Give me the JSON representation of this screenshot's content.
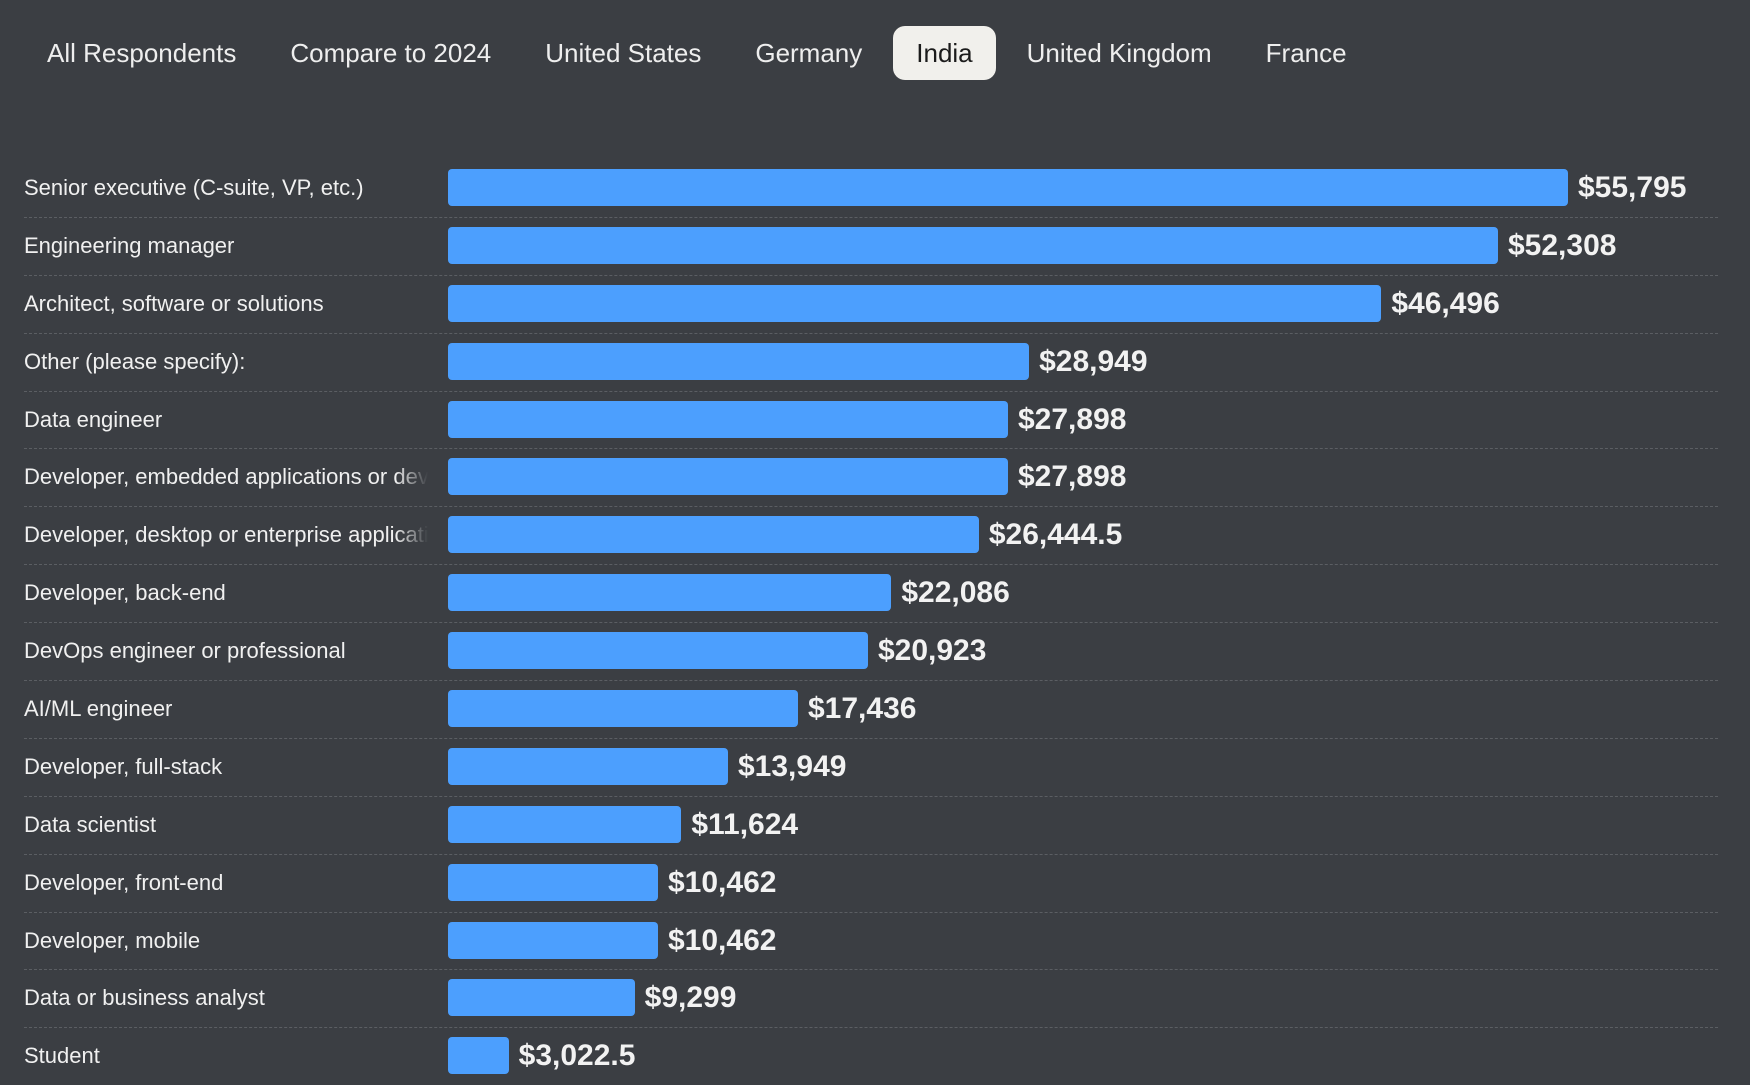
{
  "tabs": [
    {
      "label": "All Respondents",
      "active": false
    },
    {
      "label": "Compare to 2024",
      "active": false
    },
    {
      "label": "United States",
      "active": false
    },
    {
      "label": "Germany",
      "active": false
    },
    {
      "label": "India",
      "active": true
    },
    {
      "label": "United Kingdom",
      "active": false
    },
    {
      "label": "France",
      "active": false
    }
  ],
  "colors": {
    "background": "#3b3e43",
    "bar": "#4c9ffe",
    "active_tab_bg": "#f1f0ec"
  },
  "chart_data": {
    "type": "bar",
    "orientation": "horizontal",
    "categories": [
      "Senior executive (C-suite, VP, etc.)",
      "Engineering manager",
      "Architect, software or solutions",
      "Other (please specify):",
      "Data engineer",
      "Developer, embedded applications or devices",
      "Developer, desktop or enterprise applications",
      "Developer, back-end",
      "DevOps engineer or professional",
      "AI/ML engineer",
      "Developer, full-stack",
      "Data scientist",
      "Developer, front-end",
      "Developer, mobile",
      "Data or business analyst",
      "Student"
    ],
    "values": [
      55795,
      52308,
      46496,
      28949,
      27898,
      27898,
      26444.5,
      22086,
      20923,
      17436,
      13949,
      11624,
      10462,
      10462,
      9299,
      3022.5
    ],
    "value_labels": [
      "$55,795",
      "$52,308",
      "$46,496",
      "$28,949",
      "$27,898",
      "$27,898",
      "$26,444.5",
      "$22,086",
      "$20,923",
      "$17,436",
      "$13,949",
      "$11,624",
      "$10,462",
      "$10,462",
      "$9,299",
      "$3,022.5"
    ],
    "grid": false,
    "legend": "none"
  }
}
